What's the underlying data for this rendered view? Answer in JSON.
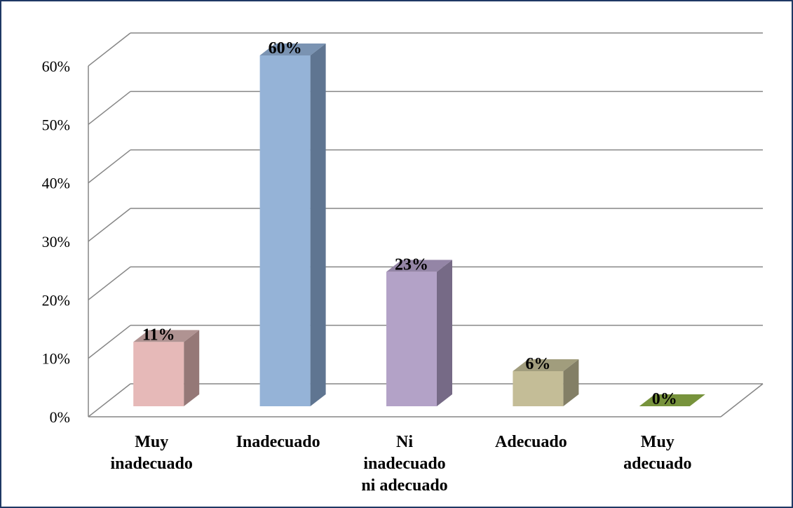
{
  "chart_data": {
    "type": "bar",
    "categories": [
      [
        "Muy",
        "inadecuado"
      ],
      [
        "Inadecuado"
      ],
      [
        "Ni",
        "inadecuado",
        "ni adecuado"
      ],
      [
        "Adecuado"
      ],
      [
        "Muy",
        "adecuado"
      ]
    ],
    "values": [
      11,
      60,
      23,
      6,
      0
    ],
    "data_labels": [
      "11%",
      "60%",
      "23%",
      "6%",
      "0%"
    ],
    "title": "",
    "xlabel": "",
    "ylabel": "",
    "ylim": [
      0,
      60
    ],
    "yticks": [
      "0%",
      "10%",
      "20%",
      "30%",
      "40%",
      "50%",
      "60%"
    ],
    "grid": true,
    "three_d": true,
    "colors": [
      {
        "front": "#e6b9b8",
        "top": "#b09392",
        "side": "#957877"
      },
      {
        "front": "#95b3d7",
        "top": "#7a93b2",
        "side": "#5f7591"
      },
      {
        "front": "#b3a2c7",
        "top": "#9485a6",
        "side": "#766a86"
      },
      {
        "front": "#c4bd97",
        "top": "#a19d7d",
        "side": "#837f66"
      },
      {
        "front": "#77933c",
        "top": "#77933c",
        "side": "#5e7530"
      }
    ]
  }
}
